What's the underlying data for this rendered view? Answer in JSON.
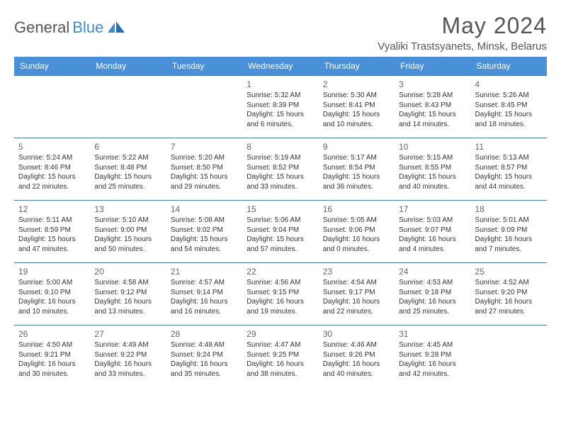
{
  "logo": {
    "text1": "General",
    "text2": "Blue"
  },
  "header": {
    "month_title": "May 2024",
    "location": "Vyaliki Trastsyanets, Minsk, Belarus"
  },
  "colors": {
    "header_bg": "#4a90d9",
    "header_text": "#ffffff",
    "row_border": "#4a7a9e",
    "daynum": "#666666",
    "body_text": "#333333",
    "logo_gray": "#555555",
    "logo_blue": "#3c8dcc"
  },
  "day_names": [
    "Sunday",
    "Monday",
    "Tuesday",
    "Wednesday",
    "Thursday",
    "Friday",
    "Saturday"
  ],
  "weeks": [
    [
      null,
      null,
      null,
      {
        "n": "1",
        "sr": "5:32 AM",
        "ss": "8:39 PM",
        "dh": "15",
        "dm": "6"
      },
      {
        "n": "2",
        "sr": "5:30 AM",
        "ss": "8:41 PM",
        "dh": "15",
        "dm": "10"
      },
      {
        "n": "3",
        "sr": "5:28 AM",
        "ss": "8:43 PM",
        "dh": "15",
        "dm": "14"
      },
      {
        "n": "4",
        "sr": "5:26 AM",
        "ss": "8:45 PM",
        "dh": "15",
        "dm": "18"
      }
    ],
    [
      {
        "n": "5",
        "sr": "5:24 AM",
        "ss": "8:46 PM",
        "dh": "15",
        "dm": "22"
      },
      {
        "n": "6",
        "sr": "5:22 AM",
        "ss": "8:48 PM",
        "dh": "15",
        "dm": "25"
      },
      {
        "n": "7",
        "sr": "5:20 AM",
        "ss": "8:50 PM",
        "dh": "15",
        "dm": "29"
      },
      {
        "n": "8",
        "sr": "5:19 AM",
        "ss": "8:52 PM",
        "dh": "15",
        "dm": "33"
      },
      {
        "n": "9",
        "sr": "5:17 AM",
        "ss": "8:54 PM",
        "dh": "15",
        "dm": "36"
      },
      {
        "n": "10",
        "sr": "5:15 AM",
        "ss": "8:55 PM",
        "dh": "15",
        "dm": "40"
      },
      {
        "n": "11",
        "sr": "5:13 AM",
        "ss": "8:57 PM",
        "dh": "15",
        "dm": "44"
      }
    ],
    [
      {
        "n": "12",
        "sr": "5:11 AM",
        "ss": "8:59 PM",
        "dh": "15",
        "dm": "47"
      },
      {
        "n": "13",
        "sr": "5:10 AM",
        "ss": "9:00 PM",
        "dh": "15",
        "dm": "50"
      },
      {
        "n": "14",
        "sr": "5:08 AM",
        "ss": "9:02 PM",
        "dh": "15",
        "dm": "54"
      },
      {
        "n": "15",
        "sr": "5:06 AM",
        "ss": "9:04 PM",
        "dh": "15",
        "dm": "57"
      },
      {
        "n": "16",
        "sr": "5:05 AM",
        "ss": "9:06 PM",
        "dh": "16",
        "dm": "0"
      },
      {
        "n": "17",
        "sr": "5:03 AM",
        "ss": "9:07 PM",
        "dh": "16",
        "dm": "4"
      },
      {
        "n": "18",
        "sr": "5:01 AM",
        "ss": "9:09 PM",
        "dh": "16",
        "dm": "7"
      }
    ],
    [
      {
        "n": "19",
        "sr": "5:00 AM",
        "ss": "9:10 PM",
        "dh": "16",
        "dm": "10"
      },
      {
        "n": "20",
        "sr": "4:58 AM",
        "ss": "9:12 PM",
        "dh": "16",
        "dm": "13"
      },
      {
        "n": "21",
        "sr": "4:57 AM",
        "ss": "9:14 PM",
        "dh": "16",
        "dm": "16"
      },
      {
        "n": "22",
        "sr": "4:56 AM",
        "ss": "9:15 PM",
        "dh": "16",
        "dm": "19"
      },
      {
        "n": "23",
        "sr": "4:54 AM",
        "ss": "9:17 PM",
        "dh": "16",
        "dm": "22"
      },
      {
        "n": "24",
        "sr": "4:53 AM",
        "ss": "9:18 PM",
        "dh": "16",
        "dm": "25"
      },
      {
        "n": "25",
        "sr": "4:52 AM",
        "ss": "9:20 PM",
        "dh": "16",
        "dm": "27"
      }
    ],
    [
      {
        "n": "26",
        "sr": "4:50 AM",
        "ss": "9:21 PM",
        "dh": "16",
        "dm": "30"
      },
      {
        "n": "27",
        "sr": "4:49 AM",
        "ss": "9:22 PM",
        "dh": "16",
        "dm": "33"
      },
      {
        "n": "28",
        "sr": "4:48 AM",
        "ss": "9:24 PM",
        "dh": "16",
        "dm": "35"
      },
      {
        "n": "29",
        "sr": "4:47 AM",
        "ss": "9:25 PM",
        "dh": "16",
        "dm": "38"
      },
      {
        "n": "30",
        "sr": "4:46 AM",
        "ss": "9:26 PM",
        "dh": "16",
        "dm": "40"
      },
      {
        "n": "31",
        "sr": "4:45 AM",
        "ss": "9:28 PM",
        "dh": "16",
        "dm": "42"
      },
      null
    ]
  ],
  "labels": {
    "sunrise": "Sunrise:",
    "sunset": "Sunset:",
    "daylight": "Daylight:",
    "hours": "hours",
    "and": "and",
    "minutes": "minutes."
  }
}
